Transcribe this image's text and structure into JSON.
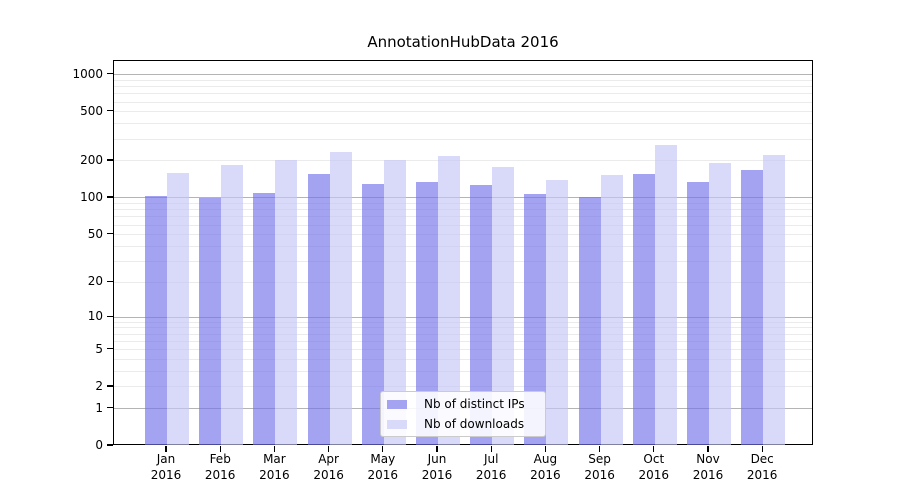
{
  "chart_data": {
    "type": "bar",
    "title": "AnnotationHubData 2016",
    "categories": [
      "Jan",
      "Feb",
      "Mar",
      "Apr",
      "May",
      "Jun",
      "Jul",
      "Aug",
      "Sep",
      "Oct",
      "Nov",
      "Dec"
    ],
    "x_tick_year": "2016",
    "series": [
      {
        "name": "Nb of distinct IPs",
        "fill": "rgba(113,113,233,0.65)",
        "swatch": "#a3a3f1",
        "values": [
          103,
          100,
          110,
          157,
          131,
          136,
          128,
          108,
          102,
          158,
          136,
          168
        ]
      },
      {
        "name": "Nb of downloads",
        "fill": "rgba(197,197,246,0.65)",
        "swatch": "#d9d9f9",
        "values": [
          160,
          184,
          203,
          237,
          204,
          220,
          179,
          141,
          155,
          270,
          193,
          222
        ]
      }
    ],
    "y_axis": {
      "scale": "log1p",
      "tick_labels": [
        "0",
        "1",
        "2",
        "5",
        "10",
        "20",
        "50",
        "100",
        "200",
        "500",
        "1000"
      ],
      "tick_values": [
        0,
        1,
        2,
        5,
        10,
        20,
        50,
        100,
        200,
        500,
        1000
      ],
      "major_gridlines": [
        1,
        10,
        100,
        1000
      ],
      "minor_gridlines": [
        2,
        3,
        4,
        5,
        6,
        7,
        8,
        9,
        20,
        30,
        40,
        50,
        60,
        70,
        80,
        90,
        200,
        300,
        400,
        500,
        600,
        700,
        800,
        900
      ],
      "ylim": [
        0,
        1290
      ]
    },
    "legend_position": "lower center",
    "grid": true,
    "colors": {
      "major_grid": "#b4b4b4",
      "minor_grid": "#ebebeb",
      "axis": "#000000"
    }
  }
}
